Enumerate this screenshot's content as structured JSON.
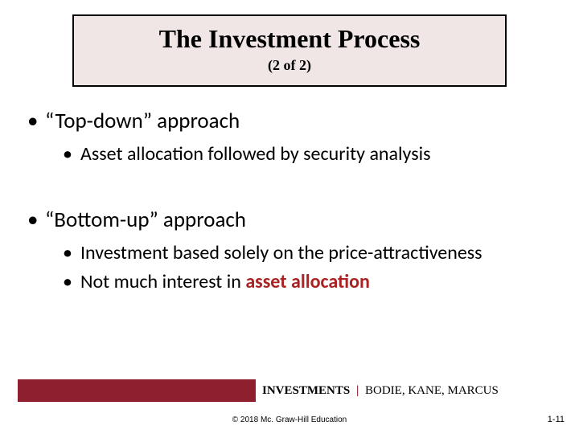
{
  "title": "The Investment Process",
  "subtitle": "(2 of 2)",
  "bullets": {
    "b1": "“Top-down” approach",
    "b1_1": "Asset allocation followed by security analysis",
    "b2": "“Bottom-up” approach",
    "b2_1": "Investment based solely on the price-attractiveness",
    "b2_2_pre": "Not much interest in ",
    "b2_2_emph": "asset allocation"
  },
  "footer": {
    "investments": "INVESTMENTS",
    "authors": "BODIE, KANE, MARCUS",
    "copyright": "© 2018 Mc. Graw-Hill Education",
    "pagenum": "1-11"
  },
  "colors": {
    "title_bg": "#f0e6e6",
    "accent": "#8e1f2f",
    "emphasis": "#aa2222"
  }
}
